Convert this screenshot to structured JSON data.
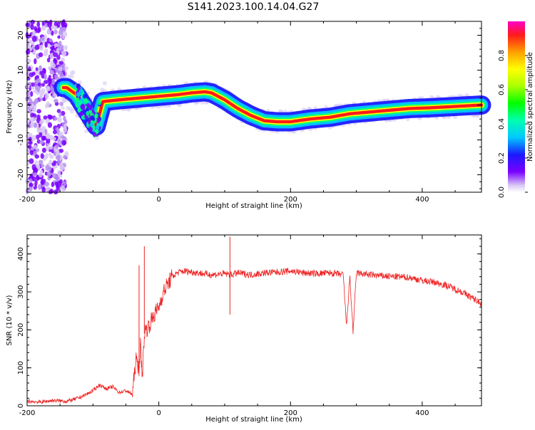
{
  "title": "S141.2023.100.14.04.G27",
  "chart_data": [
    {
      "type": "heatmap",
      "xlabel": "Height of straight line (km)",
      "ylabel": "Frequency (Hz)",
      "xlim": [
        -200,
        490
      ],
      "ylim": [
        -25,
        24
      ],
      "xticks": [
        -200,
        0,
        200,
        400
      ],
      "yticks": [
        -20,
        -10,
        0,
        10,
        20
      ],
      "colorbar": {
        "label": "Normalized spectral amplitude",
        "range": [
          0.0,
          1.0
        ],
        "ticks": [
          "0.0",
          "0.2",
          "0.4",
          "0.6",
          "0.8"
        ]
      },
      "ridge": {
        "description_points_x": [
          -140,
          -125,
          -115,
          -105,
          -95,
          -85,
          -60,
          -30,
          0,
          30,
          50,
          70,
          80,
          100,
          120,
          140,
          160,
          180,
          200,
          230,
          260,
          290,
          320,
          350,
          380,
          410,
          440,
          470,
          490
        ],
        "description_points_y": [
          5,
          3,
          0,
          -3,
          -6,
          1,
          1.5,
          2,
          2.5,
          3,
          3.5,
          3.8,
          3.5,
          1.5,
          -1,
          -3,
          -4.5,
          -4.8,
          -4.8,
          -4,
          -3.5,
          -2.5,
          -2,
          -1.5,
          -1,
          -0.8,
          -0.5,
          -0.2,
          0
        ]
      }
    },
    {
      "type": "line",
      "xlabel": "Height of straight line (km)",
      "ylabel": "SNR (10 * v/v)",
      "xlim": [
        -200,
        490
      ],
      "ylim": [
        0,
        450
      ],
      "xticks": [
        -200,
        0,
        200,
        400
      ],
      "yticks": [
        0,
        100,
        200,
        300,
        400
      ],
      "color": "#ee2222",
      "series": [
        {
          "x": [
            -200,
            -180,
            -160,
            -140,
            -130,
            -120,
            -110,
            -100,
            -90,
            -80,
            -70,
            -60,
            -50,
            -40,
            -35,
            -30,
            -28,
            -25,
            -22,
            -20,
            -15,
            -10,
            -5,
            0,
            5,
            10,
            20,
            30,
            40,
            60,
            80,
            100,
            110,
            120,
            140,
            160,
            180,
            200,
            220,
            240,
            260,
            280,
            285,
            290,
            295,
            300,
            320,
            340,
            360,
            380,
            400,
            420,
            440,
            460,
            480,
            490
          ],
          "y": [
            12,
            10,
            14,
            12,
            16,
            22,
            30,
            40,
            55,
            45,
            50,
            35,
            40,
            30,
            120,
            100,
            160,
            80,
            190,
            200,
            210,
            230,
            245,
            260,
            290,
            310,
            340,
            352,
            355,
            350,
            345,
            348,
            345,
            350,
            345,
            350,
            352,
            355,
            350,
            348,
            350,
            345,
            210,
            340,
            195,
            350,
            345,
            342,
            340,
            338,
            330,
            325,
            315,
            300,
            280,
            270
          ],
          "spikes": [
            {
              "x": -30,
              "y": 370
            },
            {
              "x": -22,
              "y": 420
            },
            {
              "x": 108,
              "y": 445
            },
            {
              "x": 108,
              "y": 240
            }
          ]
        }
      ]
    }
  ]
}
